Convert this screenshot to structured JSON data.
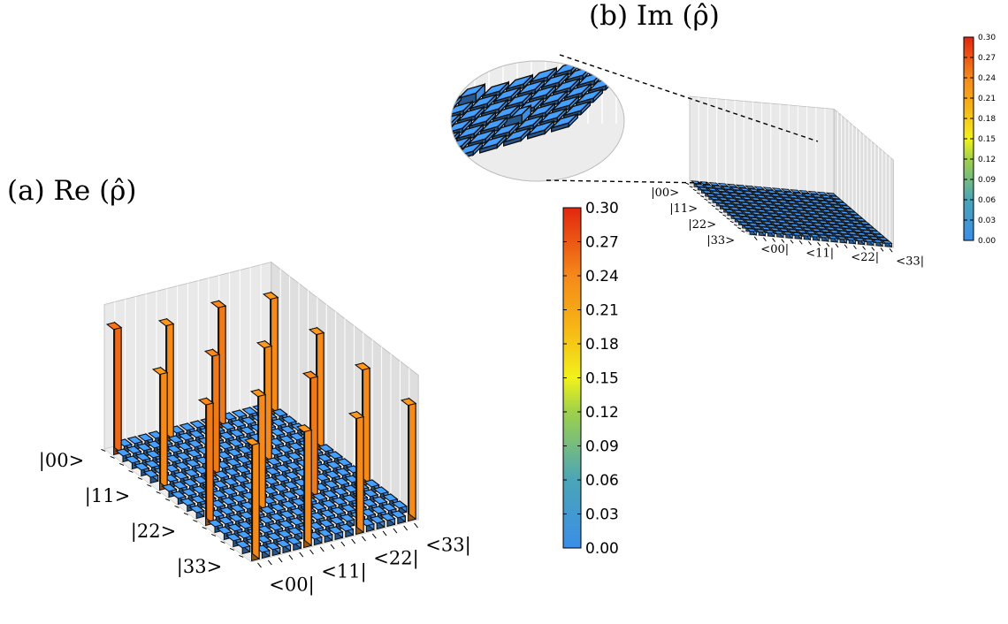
{
  "chart_data": [
    {
      "type": "bar3d",
      "panel": "(a)",
      "title": "Re (ρ̂)",
      "row_labels": [
        "|00>",
        "|11>",
        "|22>",
        "|33>"
      ],
      "col_labels": [
        "<00|",
        "<11|",
        "<22|",
        "<33|"
      ],
      "grid_size": 16,
      "zlim": [
        0,
        0.3
      ],
      "colorbar": {
        "min": 0.0,
        "max": 0.3,
        "ticks": [
          "0.00",
          "0.03",
          "0.06",
          "0.09",
          "0.12",
          "0.15",
          "0.18",
          "0.21",
          "0.24",
          "0.27",
          "0.30"
        ]
      },
      "tall_bars": [
        {
          "row": 0,
          "col": 0,
          "value": 0.26
        },
        {
          "row": 0,
          "col": 5,
          "value": 0.24
        },
        {
          "row": 0,
          "col": 10,
          "value": 0.25
        },
        {
          "row": 0,
          "col": 15,
          "value": 0.24
        },
        {
          "row": 5,
          "col": 0,
          "value": 0.24
        },
        {
          "row": 5,
          "col": 5,
          "value": 0.25
        },
        {
          "row": 5,
          "col": 10,
          "value": 0.24
        },
        {
          "row": 5,
          "col": 15,
          "value": 0.24
        },
        {
          "row": 10,
          "col": 0,
          "value": 0.25
        },
        {
          "row": 10,
          "col": 5,
          "value": 0.24
        },
        {
          "row": 10,
          "col": 10,
          "value": 0.25
        },
        {
          "row": 10,
          "col": 15,
          "value": 0.24
        },
        {
          "row": 15,
          "col": 0,
          "value": 0.24
        },
        {
          "row": 15,
          "col": 5,
          "value": 0.24
        },
        {
          "row": 15,
          "col": 10,
          "value": 0.24
        },
        {
          "row": 15,
          "col": 15,
          "value": 0.24
        }
      ],
      "other_elements_value": 0.0
    },
    {
      "type": "bar3d",
      "panel": "(b)",
      "title": "Im (ρ̂)",
      "row_labels": [
        "|00>",
        "|11>",
        "|22>",
        "|33>"
      ],
      "col_labels": [
        "<00|",
        "<11|",
        "<22|",
        "<33|"
      ],
      "grid_size": 16,
      "zlim": [
        0,
        0.3
      ],
      "colorbar": {
        "min": 0.0,
        "max": 0.3,
        "ticks": [
          "0.00",
          "0.03",
          "0.06",
          "0.09",
          "0.12",
          "0.15",
          "0.18",
          "0.21",
          "0.24",
          "0.27",
          "0.30"
        ]
      },
      "all_elements_value": 0.0,
      "inset": "magnified view of floor"
    }
  ]
}
